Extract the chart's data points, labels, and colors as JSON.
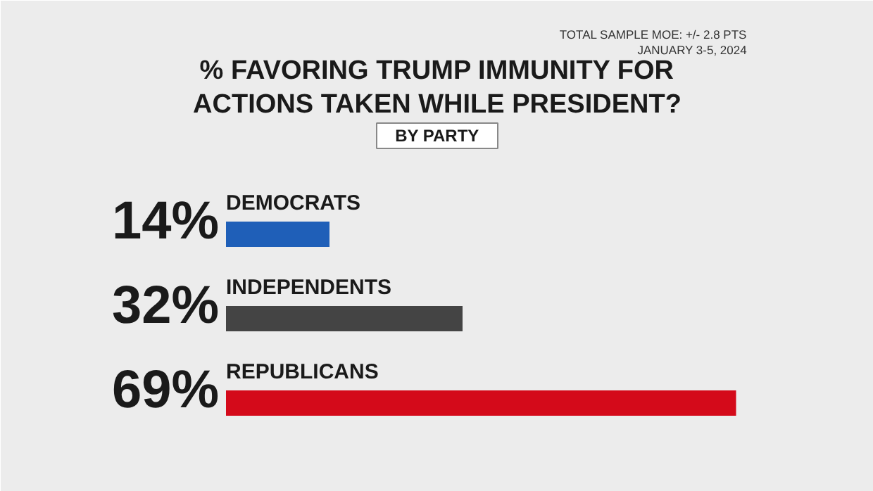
{
  "chart_data": {
    "type": "bar",
    "orientation": "horizontal",
    "title": "% FAVORING TRUMP IMMUNITY FOR ACTIONS TAKEN WHILE PRESIDENT?",
    "subtitle": "BY PARTY",
    "annotations": [
      "TOTAL SAMPLE MOE: +/- 2.8 PTS",
      "JANUARY 3-5, 2024"
    ],
    "categories": [
      "DEMOCRATS",
      "INDEPENDENTS",
      "REPUBLICANS"
    ],
    "values": [
      14,
      32,
      69
    ],
    "colors": [
      "#1f5fb8",
      "#444444",
      "#d40a1a"
    ],
    "value_labels": [
      "14%",
      "32%",
      "69%"
    ],
    "grid": false
  }
}
